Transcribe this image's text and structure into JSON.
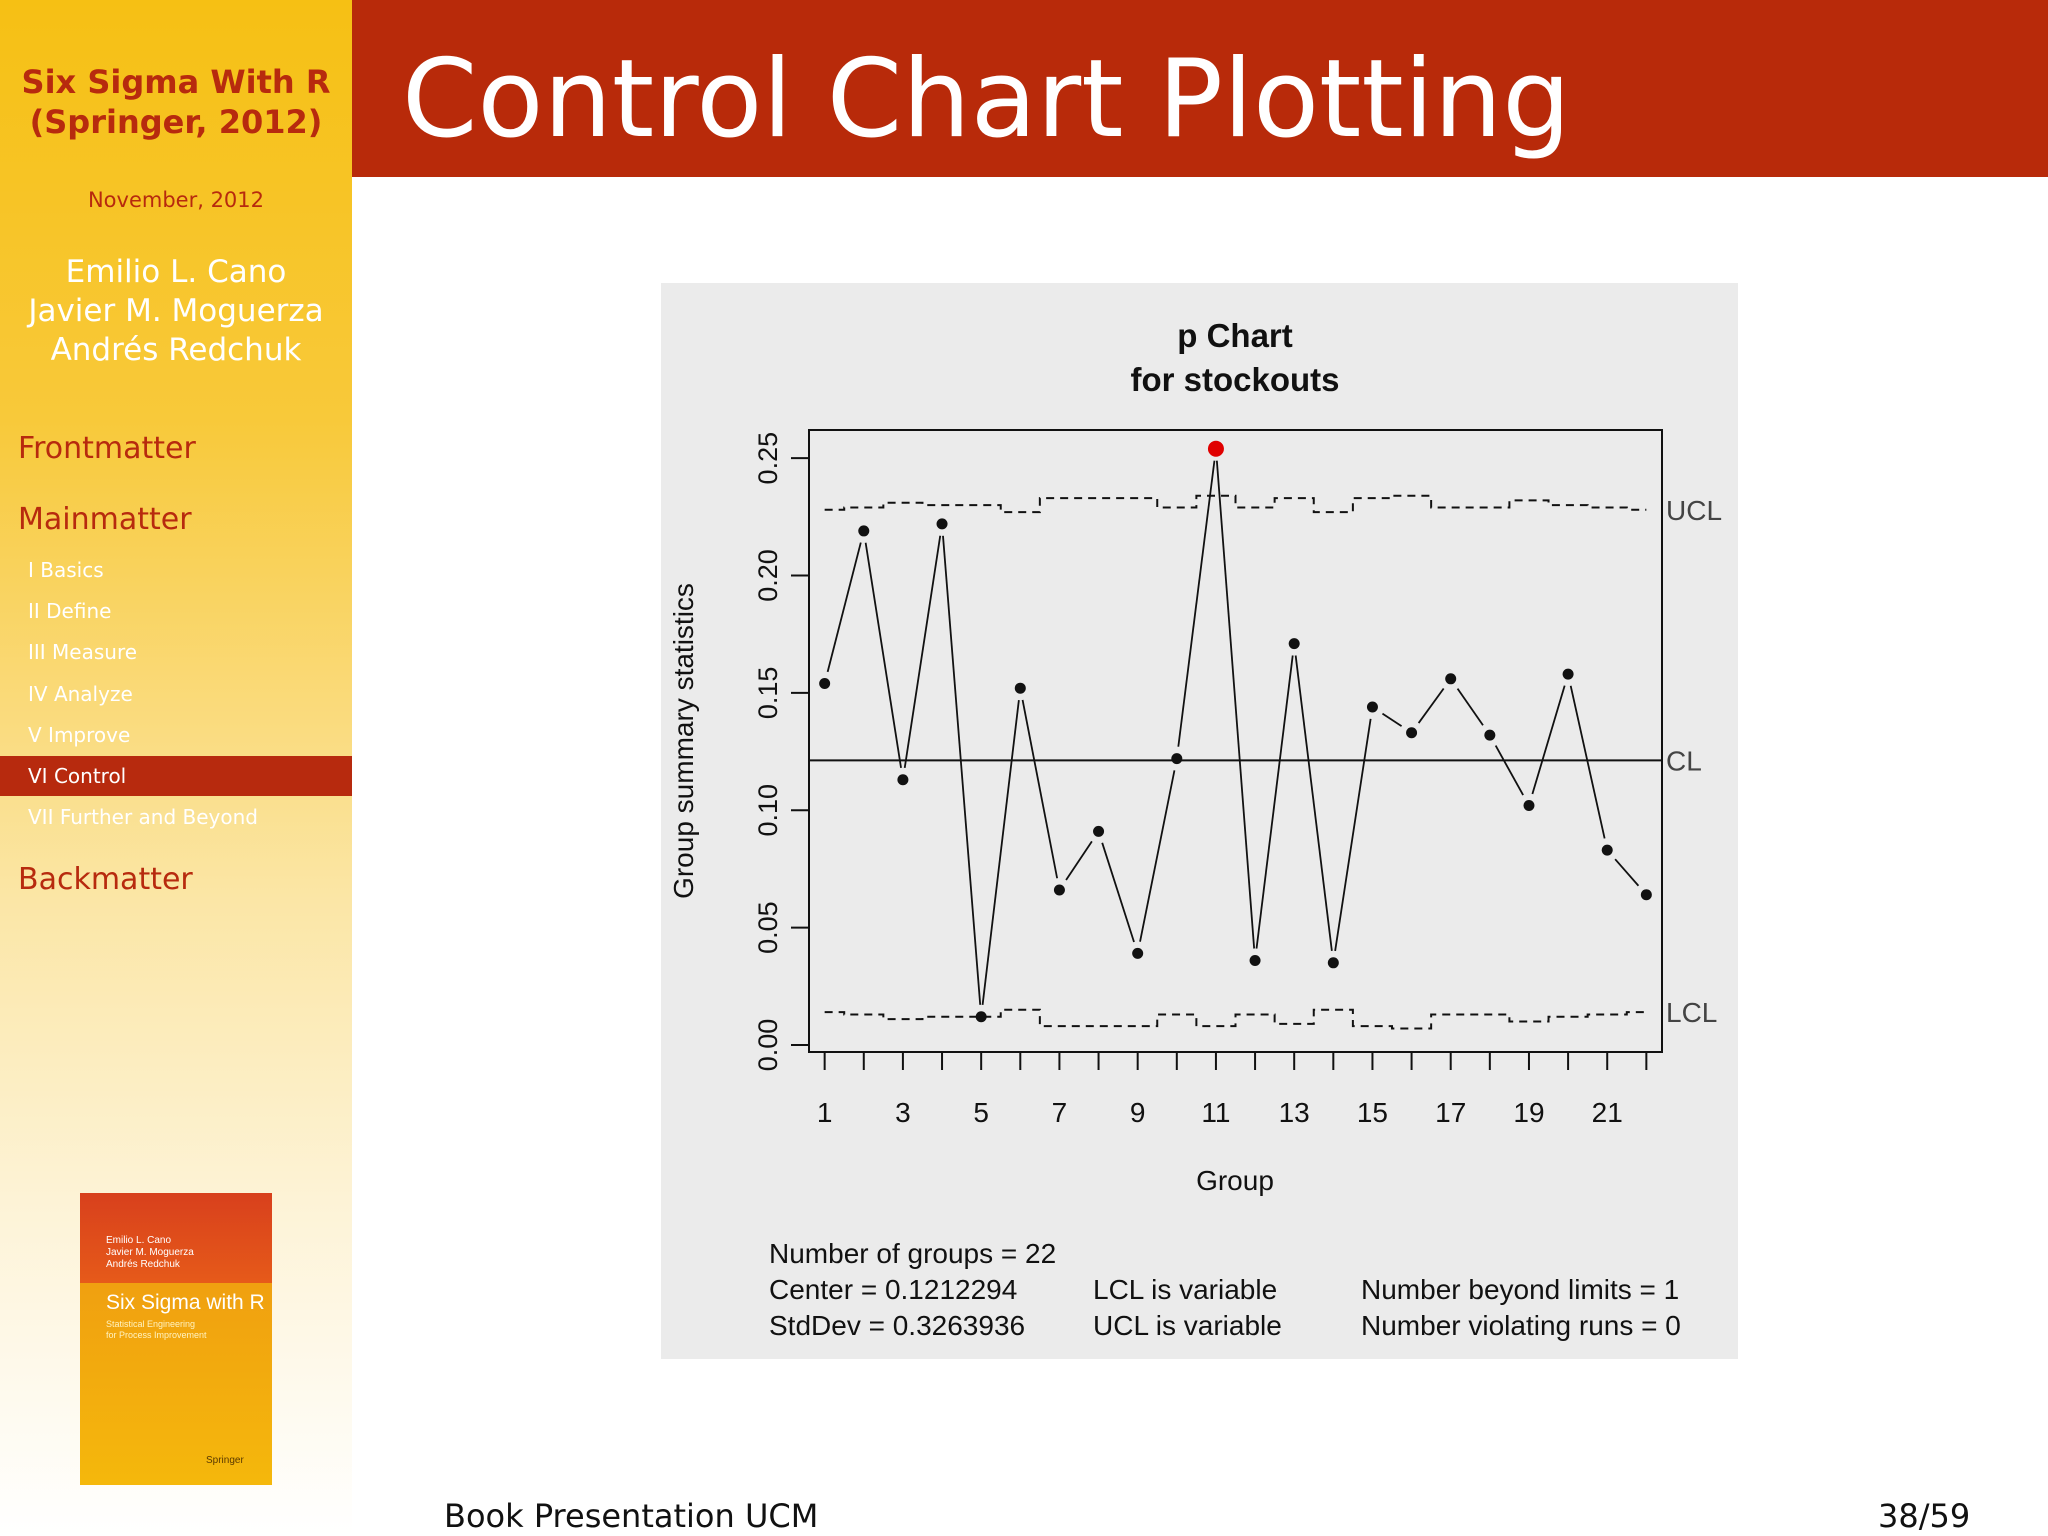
{
  "sidebar": {
    "book_title_line1": "Six Sigma With R",
    "book_title_line2": "(Springer, 2012)",
    "date": "November, 2012",
    "authors": [
      "Emilio L. Cano",
      "Javier M. Moguerza",
      "Andrés Redchuk"
    ],
    "sections": {
      "frontmatter": "Frontmatter",
      "mainmatter": "Mainmatter",
      "backmatter": "Backmatter"
    },
    "subsections": [
      "I Basics",
      "II Define",
      "III Measure",
      "IV Analyze",
      "V Improve",
      "VI Control",
      "VII Further and Beyond"
    ],
    "active_subsection": "VI Control",
    "cover": {
      "authors": [
        "Emilio L. Cano",
        "Javier M. Moguerza",
        "Andrés Redchuk"
      ],
      "title": "Six Sigma with R",
      "subtitle_line1": "Statistical Engineering",
      "subtitle_line2": "for Process Improvement",
      "publisher": "Springer"
    }
  },
  "header": {
    "title": "Control Chart Plotting"
  },
  "footer": {
    "left": "Book Presentation UCM",
    "page": "38/59"
  },
  "colors": {
    "header_red": "#b82a0a",
    "sidebar_yellow": "#f6c014",
    "accent_red": "#b72a0e",
    "out_of_control_point": "#e00000"
  },
  "chart_data": {
    "type": "line",
    "title_line1": "p Chart",
    "title_line2": "for stockouts",
    "xlabel": "Group",
    "ylabel": "Group summary statistics",
    "x": [
      1,
      2,
      3,
      4,
      5,
      6,
      7,
      8,
      9,
      10,
      11,
      12,
      13,
      14,
      15,
      16,
      17,
      18,
      19,
      20,
      21,
      22
    ],
    "x_tick_labels": [
      "1",
      "3",
      "5",
      "7",
      "9",
      "11",
      "13",
      "15",
      "17",
      "19",
      "21"
    ],
    "y_tick_labels": [
      "0.00",
      "0.05",
      "0.10",
      "0.15",
      "0.20",
      "0.25"
    ],
    "ylim": [
      -0.003,
      0.262
    ],
    "values": [
      0.154,
      0.219,
      0.113,
      0.222,
      0.012,
      0.152,
      0.066,
      0.091,
      0.039,
      0.122,
      0.254,
      0.036,
      0.171,
      0.035,
      0.144,
      0.133,
      0.156,
      0.132,
      0.102,
      0.158,
      0.083,
      0.064
    ],
    "ucl": [
      0.228,
      0.229,
      0.231,
      0.23,
      0.23,
      0.227,
      0.233,
      0.233,
      0.233,
      0.229,
      0.234,
      0.229,
      0.233,
      0.227,
      0.233,
      0.234,
      0.229,
      0.229,
      0.232,
      0.23,
      0.229,
      0.228
    ],
    "lcl": [
      0.014,
      0.013,
      0.011,
      0.012,
      0.012,
      0.015,
      0.008,
      0.008,
      0.008,
      0.013,
      0.008,
      0.013,
      0.009,
      0.015,
      0.008,
      0.007,
      0.013,
      0.013,
      0.01,
      0.012,
      0.013,
      0.014
    ],
    "center": 0.1212294,
    "limit_labels": {
      "ucl": "UCL",
      "cl": "CL",
      "lcl": "LCL"
    },
    "out_of_control_index": 11,
    "stats": {
      "groups": "Number of groups = 22",
      "center": "Center = 0.1212294",
      "stddev": "StdDev = 0.3263936",
      "lcl_note": "LCL is variable",
      "ucl_note": "UCL is variable",
      "beyond": "Number beyond limits = 1",
      "runs": "Number violating runs = 0"
    },
    "grid": false
  }
}
